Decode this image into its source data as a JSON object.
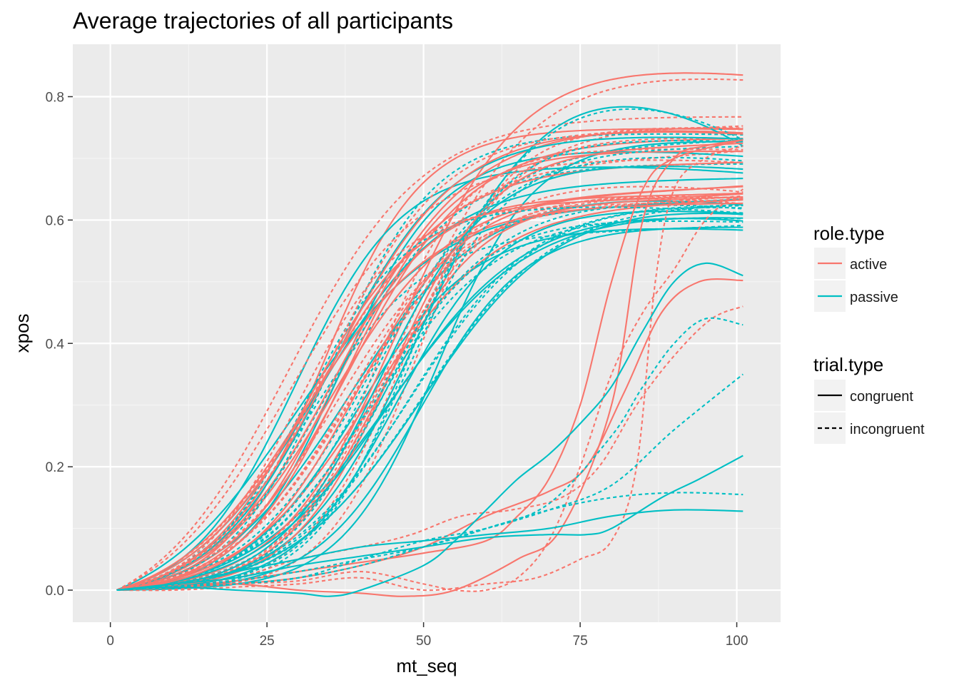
{
  "colors": {
    "active": "#F8766D",
    "passive": "#00BFC4",
    "panel_bg": "#EBEBEB",
    "grid_major": "#FFFFFF",
    "grid_minor": "#F5F5F5",
    "legend_key_bg": "#F2F2F2"
  },
  "chart_data": {
    "type": "line",
    "title": "Average trajectories of all participants",
    "xlabel": "mt_seq",
    "ylabel": "xpos",
    "xlim": [
      -6,
      107
    ],
    "ylim": [
      -0.052,
      0.885
    ],
    "x_ticks": [
      0,
      25,
      50,
      75,
      100
    ],
    "x_tick_labels": [
      "0",
      "25",
      "50",
      "75",
      "100"
    ],
    "y_ticks": [
      0.0,
      0.2,
      0.4,
      0.6,
      0.8
    ],
    "y_tick_labels": [
      "0.0",
      "0.2",
      "0.4",
      "0.6",
      "0.8"
    ],
    "grid": true,
    "legend_position": "right",
    "legends": [
      {
        "title": "role.type",
        "aesthetic": "colour",
        "entries": [
          {
            "label": "active",
            "color": "#F8766D"
          },
          {
            "label": "passive",
            "color": "#00BFC4"
          }
        ]
      },
      {
        "title": "trial.type",
        "aesthetic": "linetype",
        "entries": [
          {
            "label": "congruent",
            "linetype": "solid"
          },
          {
            "label": "incongruent",
            "linetype": "dashed"
          }
        ]
      }
    ],
    "sigmoid_groups": [
      {
        "role": "active",
        "trial": "congruent",
        "n": 14,
        "mid_range": [
          28,
          50
        ],
        "spread_range": [
          7.5,
          11
        ],
        "final_range": [
          0.62,
          0.78
        ],
        "top_curve": {
          "mid": 46,
          "spread": 9.5,
          "peak": 0.85,
          "final": 0.835
        }
      },
      {
        "role": "active",
        "trial": "incongruent",
        "n": 14,
        "mid_range": [
          27,
          50
        ],
        "spread_range": [
          7,
          11
        ],
        "final_range": [
          0.62,
          0.77
        ],
        "top_curve": {
          "mid": 47,
          "spread": 10,
          "peak": 0.84,
          "final": 0.827
        }
      },
      {
        "role": "passive",
        "trial": "congruent",
        "n": 14,
        "mid_range": [
          29,
          53
        ],
        "spread_range": [
          7.5,
          11.5
        ],
        "final_range": [
          0.58,
          0.74
        ],
        "top_curve": {
          "mid": 49,
          "spread": 9.5,
          "peak": 0.82,
          "final": 0.72
        }
      },
      {
        "role": "passive",
        "trial": "incongruent",
        "n": 14,
        "mid_range": [
          27,
          50
        ],
        "spread_range": [
          7,
          11
        ],
        "final_range": [
          0.59,
          0.75
        ],
        "top_curve": {
          "mid": 48,
          "spread": 10,
          "peak": 0.815,
          "final": 0.73
        }
      }
    ],
    "series": [
      {
        "role": "active",
        "trial": "congruent",
        "x": [
          1,
          10,
          20,
          30,
          40,
          47,
          55,
          65,
          72,
          80,
          85,
          90,
          95,
          101
        ],
        "y": [
          0,
          0.005,
          0.01,
          0.0,
          -0.005,
          -0.01,
          0.0,
          0.05,
          0.1,
          0.3,
          0.6,
          0.7,
          0.72,
          0.73
        ]
      },
      {
        "role": "active",
        "trial": "congruent",
        "x": [
          1,
          10,
          20,
          30,
          40,
          50,
          60,
          70,
          76,
          82,
          88,
          94,
          101
        ],
        "y": [
          0,
          0.005,
          0.01,
          0.02,
          0.04,
          0.07,
          0.12,
          0.16,
          0.2,
          0.32,
          0.45,
          0.5,
          0.502
        ]
      },
      {
        "role": "active",
        "trial": "congruent",
        "x": [
          1,
          10,
          20,
          30,
          40,
          50,
          60,
          65,
          70,
          75,
          80,
          85,
          90,
          101
        ],
        "y": [
          0,
          0.005,
          0.015,
          0.03,
          0.045,
          0.06,
          0.08,
          0.12,
          0.18,
          0.3,
          0.5,
          0.65,
          0.7,
          0.73
        ]
      },
      {
        "role": "active",
        "trial": "incongruent",
        "x": [
          1,
          10,
          20,
          30,
          40,
          50,
          55,
          60,
          65,
          70,
          75,
          80,
          85,
          90,
          95,
          101
        ],
        "y": [
          0,
          0.005,
          0.01,
          0.015,
          0.03,
          0.01,
          0.0,
          0.0,
          0.02,
          0.08,
          0.2,
          0.35,
          0.45,
          0.52,
          0.6,
          0.65
        ]
      },
      {
        "role": "active",
        "trial": "incongruent",
        "x": [
          1,
          10,
          20,
          30,
          40,
          48,
          56,
          64,
          72,
          78,
          84,
          90,
          96,
          101
        ],
        "y": [
          0,
          0.01,
          0.02,
          0.05,
          0.07,
          0.09,
          0.12,
          0.13,
          0.15,
          0.2,
          0.3,
          0.38,
          0.44,
          0.46
        ]
      },
      {
        "role": "active",
        "trial": "incongruent",
        "x": [
          1,
          10,
          20,
          30,
          40,
          50,
          60,
          68,
          75,
          80,
          84,
          87,
          90,
          95,
          101
        ],
        "y": [
          0,
          0.0,
          0.005,
          0.01,
          0.02,
          0.0,
          0.01,
          0.02,
          0.05,
          0.08,
          0.2,
          0.5,
          0.65,
          0.7,
          0.72
        ]
      },
      {
        "role": "passive",
        "trial": "congruent",
        "x": [
          1,
          10,
          20,
          30,
          35,
          40,
          50,
          55,
          60,
          65,
          70,
          75,
          80,
          85,
          90,
          95,
          101
        ],
        "y": [
          0,
          0.005,
          0.0,
          -0.005,
          -0.01,
          0.0,
          0.04,
          0.08,
          0.13,
          0.18,
          0.22,
          0.27,
          0.33,
          0.42,
          0.5,
          0.53,
          0.51
        ]
      },
      {
        "role": "passive",
        "trial": "congruent",
        "x": [
          1,
          10,
          20,
          30,
          40,
          50,
          60,
          70,
          76,
          80,
          88,
          94,
          101
        ],
        "y": [
          0,
          0.01,
          0.02,
          0.04,
          0.055,
          0.07,
          0.085,
          0.09,
          0.09,
          0.1,
          0.15,
          0.18,
          0.218
        ]
      },
      {
        "role": "passive",
        "trial": "congruent",
        "x": [
          1,
          10,
          20,
          30,
          40,
          50,
          60,
          70,
          80,
          90,
          101
        ],
        "y": [
          0,
          0.01,
          0.03,
          0.05,
          0.07,
          0.08,
          0.09,
          0.1,
          0.12,
          0.13,
          0.128
        ]
      },
      {
        "role": "passive",
        "trial": "incongruent",
        "x": [
          1,
          10,
          20,
          30,
          40,
          50,
          60,
          70,
          80,
          90,
          101
        ],
        "y": [
          0,
          0.005,
          0.01,
          0.02,
          0.05,
          0.08,
          0.1,
          0.13,
          0.17,
          0.26,
          0.35
        ]
      },
      {
        "role": "passive",
        "trial": "incongruent",
        "x": [
          1,
          10,
          20,
          30,
          40,
          50,
          60,
          70,
          80,
          85,
          90,
          95,
          101
        ],
        "y": [
          0,
          0.005,
          0.015,
          0.03,
          0.05,
          0.07,
          0.1,
          0.14,
          0.25,
          0.33,
          0.4,
          0.44,
          0.43
        ]
      },
      {
        "role": "passive",
        "trial": "incongruent",
        "x": [
          1,
          10,
          20,
          30,
          40,
          50,
          60,
          70,
          80,
          90,
          101
        ],
        "y": [
          0,
          0.005,
          0.01,
          0.02,
          0.04,
          0.07,
          0.1,
          0.13,
          0.15,
          0.158,
          0.155
        ]
      }
    ]
  }
}
